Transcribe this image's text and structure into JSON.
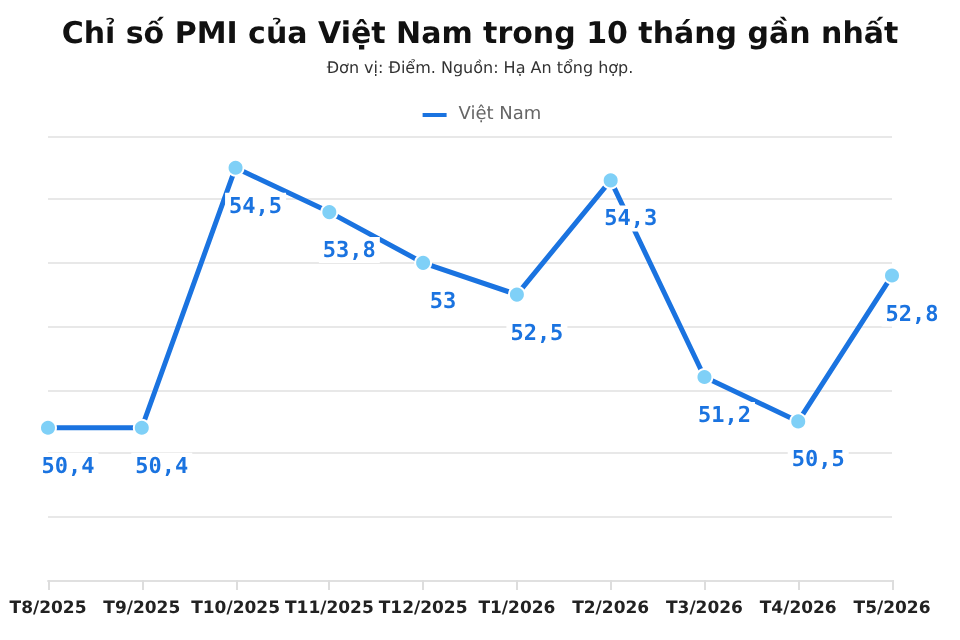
{
  "chart_data": {
    "type": "line",
    "title": "Chỉ số PMI của Việt Nam trong 10 tháng gần nhất",
    "subtitle": "Đơn vị: Điểm. Nguồn: Hạ An tổng hợp.",
    "categories": [
      "T8/2025",
      "T9/2025",
      "T10/2025",
      "T11/2025",
      "T12/2025",
      "T1/2026",
      "T2/2026",
      "T3/2026",
      "T4/2026",
      "T5/2026"
    ],
    "series": [
      {
        "name": "Việt Nam",
        "color": "#1a73e0",
        "values": [
          50.4,
          50.4,
          54.5,
          53.8,
          53,
          52.5,
          54.3,
          51.2,
          50.5,
          52.8
        ],
        "value_labels": [
          "50,4",
          "50,4",
          "54,5",
          "53,8",
          "53",
          "52,5",
          "54,3",
          "51,2",
          "50,5",
          "52,8"
        ]
      }
    ],
    "ylim": [
      48,
      55
    ],
    "yticks": [
      {
        "value": 48,
        "label": null
      },
      {
        "value": 49,
        "label": null
      },
      {
        "value": 50,
        "label": null
      },
      {
        "value": 51,
        "label": null
      },
      {
        "value": 52,
        "label": null
      },
      {
        "value": 53,
        "label": null
      },
      {
        "value": 54,
        "label": null
      },
      {
        "value": 55,
        "label": null
      }
    ],
    "tick_labels": "x",
    "grid": "y",
    "legend": "top",
    "marker": "circle",
    "line_style": "solid"
  }
}
